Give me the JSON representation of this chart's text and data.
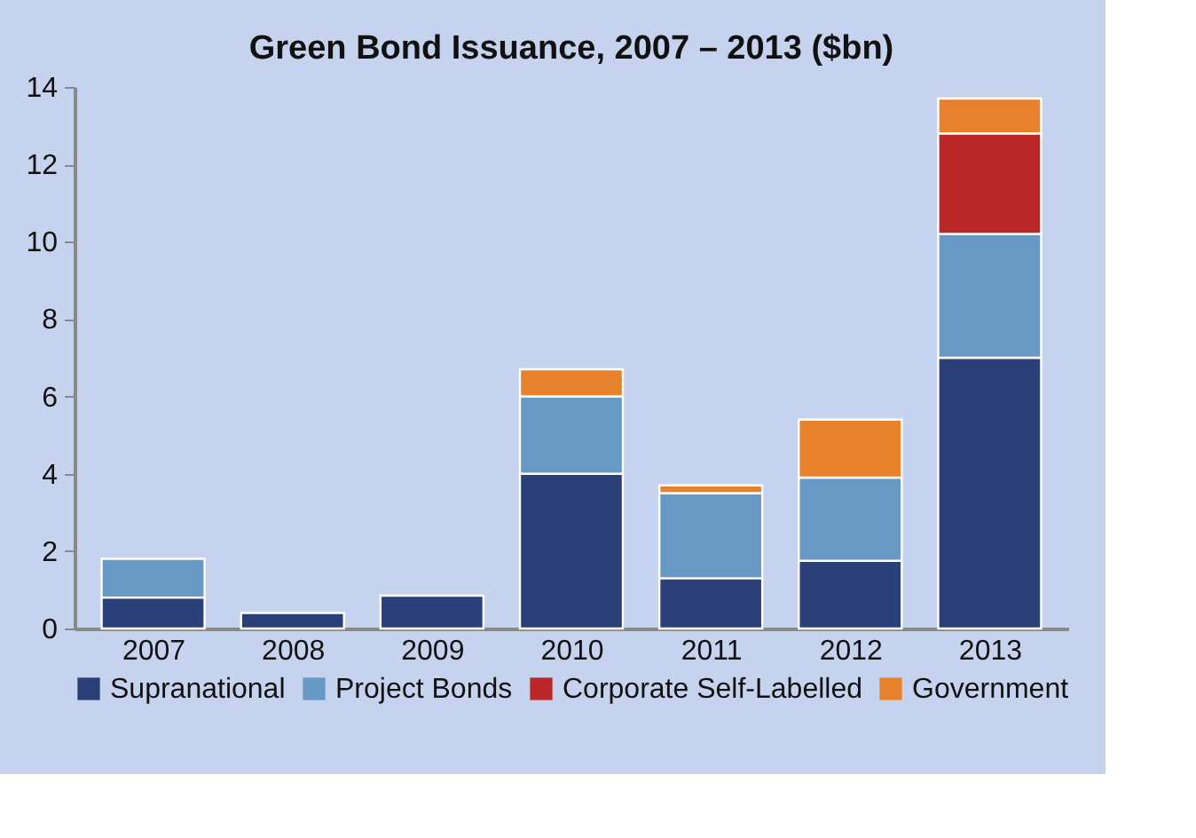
{
  "chart_data": {
    "type": "bar",
    "title": "Green Bond Issuance, 2007 – 2013 ($bn)",
    "stacked": true,
    "categories": [
      "2007",
      "2008",
      "2009",
      "2010",
      "2011",
      "2012",
      "2013"
    ],
    "series": [
      {
        "name": "Supranational",
        "color": "#2b3f78",
        "values": [
          0.8,
          0.4,
          0.85,
          4.0,
          1.3,
          1.75,
          7.0
        ]
      },
      {
        "name": "Project Bonds",
        "color": "#6899c5",
        "values": [
          1.0,
          null,
          null,
          2.0,
          2.2,
          2.15,
          3.2
        ]
      },
      {
        "name": "Corporate Self-Labelled",
        "color": "#bb2727",
        "values": [
          null,
          null,
          null,
          null,
          null,
          null,
          2.6
        ]
      },
      {
        "name": "Government",
        "color": "#e8812b",
        "values": [
          null,
          null,
          null,
          0.7,
          0.2,
          1.5,
          0.9
        ]
      }
    ],
    "ylim": [
      0,
      14
    ],
    "yticks": [
      0,
      2,
      4,
      6,
      8,
      10,
      12,
      14
    ],
    "grid": false,
    "legend": "bottom"
  }
}
